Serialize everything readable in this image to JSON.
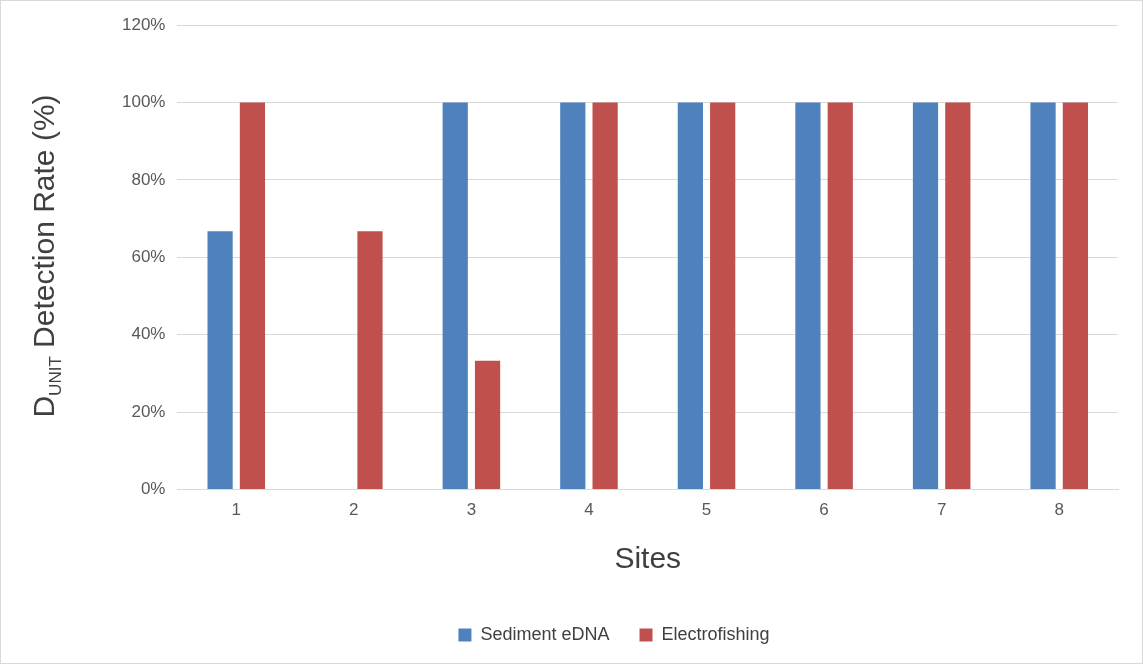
{
  "chart_data": {
    "type": "bar",
    "xlabel": "Sites",
    "ylabel": "D$_{UNIT}$ Detection Rate (%)",
    "categories": [
      "1",
      "2",
      "3",
      "4",
      "5",
      "6",
      "7",
      "8"
    ],
    "series": [
      {
        "name": "Sediment eDNA",
        "color": "#4f81bd",
        "values": [
          66.7,
          0,
          100,
          100,
          100,
          100,
          100,
          100
        ]
      },
      {
        "name": "Electrofishing",
        "color": "#c0504d",
        "values": [
          100,
          66.7,
          33.3,
          100,
          100,
          100,
          100,
          100
        ]
      }
    ],
    "ylim": [
      0,
      120
    ],
    "yticks": [
      {
        "value": 0,
        "label": "0%"
      },
      {
        "value": 20,
        "label": "20%"
      },
      {
        "value": 40,
        "label": "40%"
      },
      {
        "value": 60,
        "label": "60%"
      },
      {
        "value": 80,
        "label": "80%"
      },
      {
        "value": 100,
        "label": "100%"
      },
      {
        "value": 120,
        "label": "120%"
      }
    ],
    "grid": "y",
    "legend": "bottom"
  }
}
